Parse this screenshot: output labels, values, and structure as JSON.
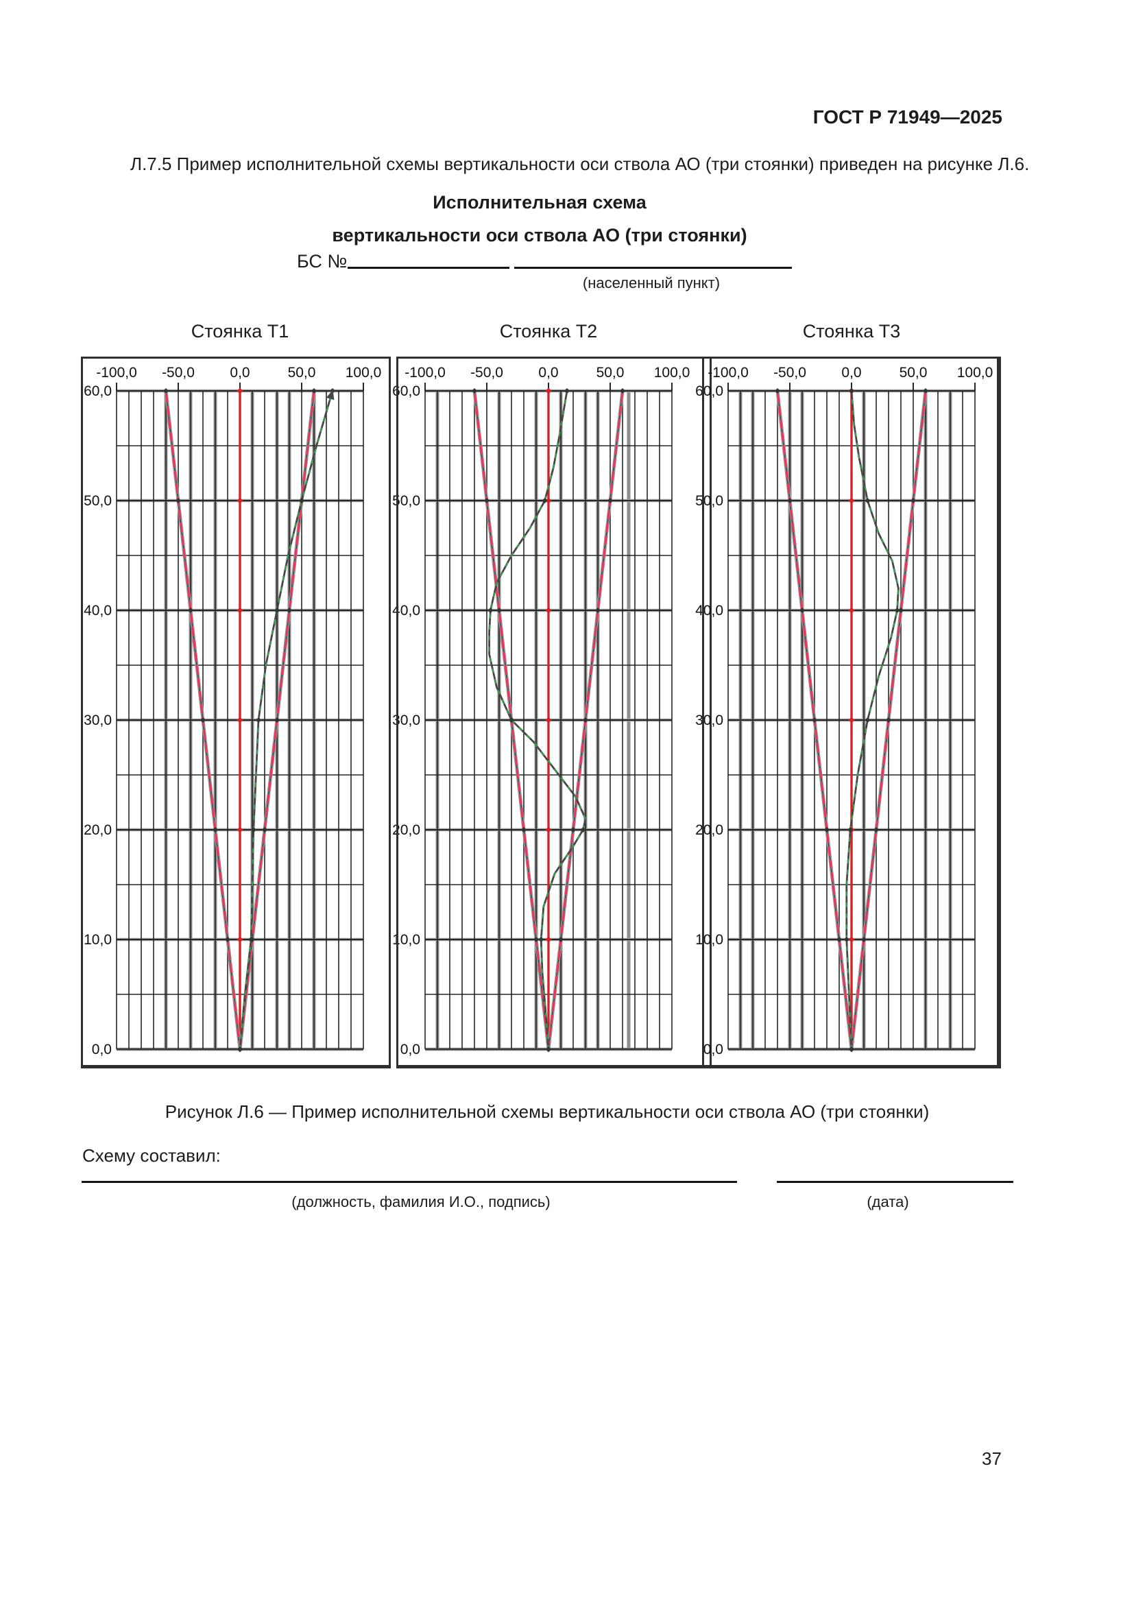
{
  "page": {
    "header": "ГОСТ Р 71949—2025",
    "paragraph": "Л.7.5 Пример исполнительной схемы вертикальности оси ствола АО (три стоянки) приведен на рисунке Л.6.",
    "page_number": "37"
  },
  "form": {
    "title_line1": "Исполнительная схема",
    "title_line2": "вертикальности оси ствола АО (три стоянки)",
    "bs_label": "БС №",
    "settlement_hint": "(населенный пункт)"
  },
  "figure": {
    "caption": "Рисунок Л.6 — Пример исполнительной схемы вертикальности оси ствола АО (три стоянки)",
    "composer_label": "Схему составил:",
    "signature_hint": "(должность, фамилия И.О., подпись)",
    "date_hint": "(дата)"
  },
  "colors": {
    "axis_red": "#d22428",
    "tolerance_crimson": "#e23a5f",
    "measured_dark": "#474747",
    "measured_green": "#3ca14b",
    "grid_thin": "#262626",
    "grid_thick": "#8e8e8e"
  },
  "chart_data": [
    {
      "type": "line",
      "title": "Стоянка Т1",
      "xlim": [
        -100,
        100
      ],
      "ylim": [
        0,
        60
      ],
      "x_ticks": [
        "-100,0",
        "-50,0",
        "0,0",
        "50,0",
        "100,0"
      ],
      "x_tick_values": [
        -100,
        -50,
        0,
        50,
        100
      ],
      "y_ticks": [
        "60,0",
        "50,0",
        "40,0",
        "30,0",
        "20,0",
        "10,0",
        "0,0"
      ],
      "y_tick_values": [
        60,
        50,
        40,
        30,
        20,
        10,
        0
      ],
      "series": [
        {
          "role": "axis",
          "points": [
            [
              0,
              0
            ],
            [
              0,
              10
            ],
            [
              0,
              20
            ],
            [
              0,
              30
            ],
            [
              0,
              40
            ],
            [
              0,
              50
            ],
            [
              0,
              60
            ]
          ]
        },
        {
          "role": "tolerance",
          "points": [
            [
              0,
              0
            ],
            [
              -10,
              10
            ],
            [
              -20,
              20
            ],
            [
              -30,
              30
            ],
            [
              -40,
              40
            ],
            [
              -50,
              50
            ],
            [
              -60,
              60
            ]
          ]
        },
        {
          "role": "tolerance",
          "points": [
            [
              0,
              0
            ],
            [
              10,
              10
            ],
            [
              20,
              20
            ],
            [
              30,
              30
            ],
            [
              40,
              40
            ],
            [
              50,
              50
            ],
            [
              60,
              60
            ]
          ]
        },
        {
          "role": "measured",
          "arrow": true,
          "points": [
            [
              0,
              0
            ],
            [
              4,
              5
            ],
            [
              9,
              10
            ],
            [
              10,
              15
            ],
            [
              11,
              20
            ],
            [
              13,
              25
            ],
            [
              15,
              30
            ],
            [
              21,
              35
            ],
            [
              30,
              40
            ],
            [
              39,
              45
            ],
            [
              50,
              50
            ],
            [
              62,
              55
            ],
            [
              75,
              60
            ]
          ]
        }
      ]
    },
    {
      "type": "line",
      "title": "Стоянка Т2",
      "xlim": [
        -100,
        100
      ],
      "ylim": [
        0,
        60
      ],
      "x_ticks": [
        "-100,0",
        "-50,0",
        "0,0",
        "50,0",
        "100,0"
      ],
      "x_tick_values": [
        -100,
        -50,
        0,
        50,
        100
      ],
      "y_ticks": [
        "60,0",
        "50,0",
        "40,0",
        "30,0",
        "20,0",
        "10,0",
        "0,0"
      ],
      "y_tick_values": [
        60,
        50,
        40,
        30,
        20,
        10,
        0
      ],
      "series": [
        {
          "role": "axis",
          "points": [
            [
              0,
              0
            ],
            [
              0,
              10
            ],
            [
              0,
              20
            ],
            [
              0,
              30
            ],
            [
              0,
              40
            ],
            [
              0,
              50
            ],
            [
              0,
              60
            ]
          ]
        },
        {
          "role": "tolerance",
          "points": [
            [
              0,
              0
            ],
            [
              -10,
              10
            ],
            [
              -20,
              20
            ],
            [
              -30,
              30
            ],
            [
              -40,
              40
            ],
            [
              -50,
              50
            ],
            [
              -60,
              60
            ]
          ]
        },
        {
          "role": "tolerance",
          "points": [
            [
              0,
              0
            ],
            [
              10,
              10
            ],
            [
              20,
              20
            ],
            [
              30,
              30
            ],
            [
              40,
              40
            ],
            [
              50,
              50
            ],
            [
              60,
              60
            ]
          ]
        },
        {
          "role": "measured",
          "arrow": false,
          "points": [
            [
              0,
              0
            ],
            [
              -2,
              3
            ],
            [
              -5,
              7
            ],
            [
              -6,
              10
            ],
            [
              -4,
              13
            ],
            [
              5,
              16
            ],
            [
              20,
              18.5
            ],
            [
              28,
              20
            ],
            [
              30,
              21
            ],
            [
              22,
              23
            ],
            [
              5,
              25.5
            ],
            [
              -12,
              28
            ],
            [
              -30,
              30
            ],
            [
              -42,
              33
            ],
            [
              -48,
              36
            ],
            [
              -48,
              38
            ],
            [
              -47,
              40
            ],
            [
              -42,
              42.5
            ],
            [
              -30,
              45
            ],
            [
              -15,
              47.5
            ],
            [
              -3,
              50
            ],
            [
              4,
              53
            ],
            [
              9,
              56
            ],
            [
              15,
              60
            ]
          ]
        }
      ]
    },
    {
      "type": "line",
      "title": "Стоянка Т3",
      "xlim": [
        -100,
        100
      ],
      "ylim": [
        0,
        60
      ],
      "x_ticks": [
        "-100,0",
        "-50,0",
        "0,0",
        "50,0",
        "100,0"
      ],
      "x_tick_values": [
        -100,
        -50,
        0,
        50,
        100
      ],
      "y_ticks": [
        "60,0",
        "50,0",
        "40,0",
        "30,0",
        "20,0",
        "10,0",
        "0,0"
      ],
      "y_tick_values": [
        60,
        50,
        40,
        30,
        20,
        10,
        0
      ],
      "series": [
        {
          "role": "axis",
          "points": [
            [
              0,
              0
            ],
            [
              0,
              10
            ],
            [
              0,
              20
            ],
            [
              0,
              30
            ],
            [
              0,
              40
            ],
            [
              0,
              50
            ],
            [
              0,
              60
            ]
          ]
        },
        {
          "role": "tolerance",
          "points": [
            [
              0,
              0
            ],
            [
              -10,
              10
            ],
            [
              -20,
              20
            ],
            [
              -30,
              30
            ],
            [
              -40,
              40
            ],
            [
              -50,
              50
            ],
            [
              -60,
              60
            ]
          ]
        },
        {
          "role": "tolerance",
          "points": [
            [
              0,
              0
            ],
            [
              10,
              10
            ],
            [
              20,
              20
            ],
            [
              30,
              30
            ],
            [
              40,
              40
            ],
            [
              50,
              50
            ],
            [
              60,
              60
            ]
          ]
        },
        {
          "role": "measured",
          "arrow": false,
          "points": [
            [
              0,
              0
            ],
            [
              -2,
              5
            ],
            [
              -4,
              10
            ],
            [
              -4,
              15
            ],
            [
              -1,
              20
            ],
            [
              5,
              25
            ],
            [
              13,
              30
            ],
            [
              22,
              34
            ],
            [
              32,
              37.5
            ],
            [
              37,
              40
            ],
            [
              38,
              42
            ],
            [
              33,
              44.5
            ],
            [
              22,
              47
            ],
            [
              13,
              50
            ],
            [
              6,
              54
            ],
            [
              2,
              57
            ],
            [
              0,
              60
            ]
          ]
        }
      ]
    }
  ]
}
